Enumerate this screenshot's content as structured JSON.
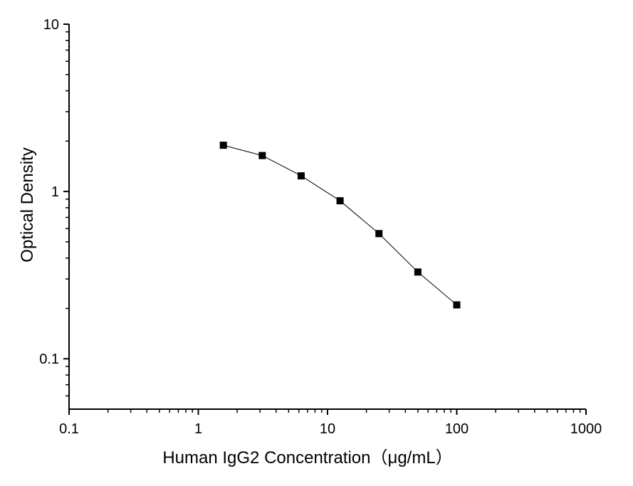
{
  "chart_data": {
    "type": "line",
    "x_scale": "log",
    "y_scale": "log",
    "xlabel": "Human IgG2 Concentration（μg/mL）",
    "ylabel": "Optical  Density",
    "xlim": [
      0.1,
      1000
    ],
    "ylim": [
      0.05,
      10
    ],
    "x_ticks": [
      "0.1",
      "1",
      "10",
      "100",
      "1000"
    ],
    "y_ticks": [
      "0.1",
      "1",
      "10"
    ],
    "grid": false,
    "series": [
      {
        "x": [
          1.5625,
          3.125,
          6.25,
          12.5,
          25,
          50,
          100
        ],
        "y": [
          1.89,
          1.64,
          1.24,
          0.88,
          0.56,
          0.33,
          0.21
        ],
        "marker": "square",
        "color": "#000000"
      }
    ]
  }
}
